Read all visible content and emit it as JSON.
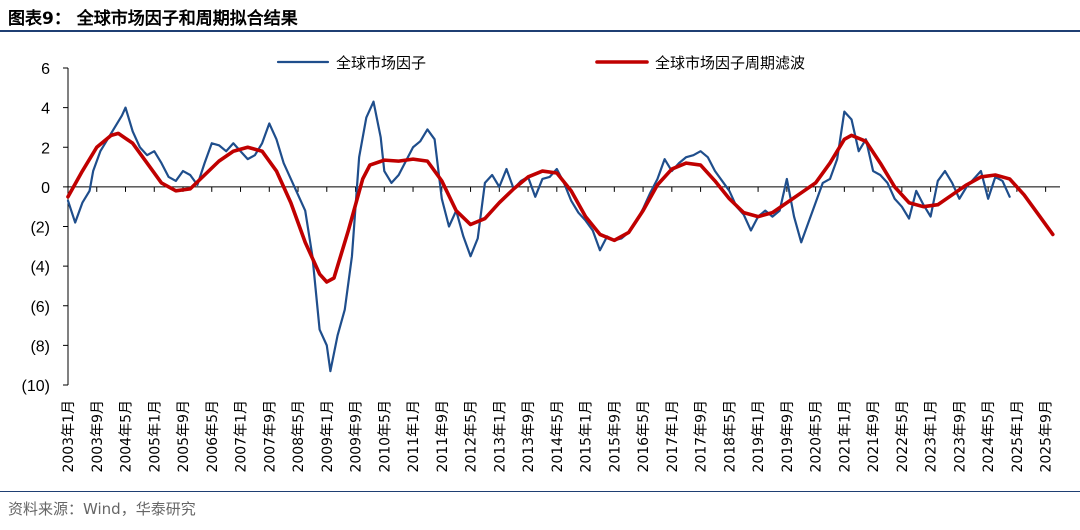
{
  "figure": {
    "title": "图表9：  全球市场因子和周期拟合结果",
    "source": "资料来源：Wind，华泰研究"
  },
  "colors": {
    "factor_line": "#1f4e8c",
    "filter_line": "#c00000",
    "axis": "#000000",
    "rule": "#1f3f73"
  },
  "chart_data": {
    "type": "line",
    "title": "",
    "xlabel": "",
    "ylabel": "",
    "ylim": [
      -10,
      6
    ],
    "y_ticks": [
      6,
      4,
      2,
      0,
      -2,
      -4,
      -6,
      -8,
      -10
    ],
    "y_tick_labels": [
      "6",
      "4",
      "2",
      "0",
      "(2)",
      "(4)",
      "(6)",
      "(8)",
      "(10)"
    ],
    "x_ticks": [
      "2003-01",
      "2003-09",
      "2004-05",
      "2005-01",
      "2005-09",
      "2006-05",
      "2007-01",
      "2007-09",
      "2008-05",
      "2009-01",
      "2009-09",
      "2010-05",
      "2011-01",
      "2011-09",
      "2012-05",
      "2013-01",
      "2013-09",
      "2014-05",
      "2015-01",
      "2015-09",
      "2016-05",
      "2017-01",
      "2017-09",
      "2018-05",
      "2019-01",
      "2019-09",
      "2020-05",
      "2021-01",
      "2021-09",
      "2022-05",
      "2023-01",
      "2023-09",
      "2024-05",
      "2025-01",
      "2025-09"
    ],
    "x_tick_labels": [
      "2003年1月",
      "2003年9月",
      "2004年5月",
      "2005年1月",
      "2005年9月",
      "2006年5月",
      "2007年1月",
      "2007年9月",
      "2008年5月",
      "2009年1月",
      "2009年9月",
      "2010年5月",
      "2011年1月",
      "2011年9月",
      "2012年5月",
      "2013年1月",
      "2013年9月",
      "2014年5月",
      "2015年1月",
      "2015年9月",
      "2016年5月",
      "2017年1月",
      "2017年9月",
      "2018年5月",
      "2019年1月",
      "2019年9月",
      "2020年5月",
      "2021年1月",
      "2021年9月",
      "2022年5月",
      "2023年1月",
      "2023年9月",
      "2024年5月",
      "2025年1月",
      "2025年9月"
    ],
    "legend_position": "top",
    "series": [
      {
        "name": "全球市场因子",
        "points": [
          [
            "2003-01",
            -0.7
          ],
          [
            "2003-03",
            -1.8
          ],
          [
            "2003-05",
            -0.8
          ],
          [
            "2003-07",
            -0.2
          ],
          [
            "2003-08",
            0.8
          ],
          [
            "2003-10",
            1.8
          ],
          [
            "2003-12",
            2.4
          ],
          [
            "2004-02",
            3.0
          ],
          [
            "2004-04",
            3.6
          ],
          [
            "2004-05",
            4.0
          ],
          [
            "2004-07",
            2.8
          ],
          [
            "2004-09",
            2.0
          ],
          [
            "2004-11",
            1.6
          ],
          [
            "2005-01",
            1.8
          ],
          [
            "2005-03",
            1.2
          ],
          [
            "2005-05",
            0.5
          ],
          [
            "2005-07",
            0.3
          ],
          [
            "2005-09",
            0.8
          ],
          [
            "2005-11",
            0.6
          ],
          [
            "2006-01",
            0.1
          ],
          [
            "2006-03",
            1.2
          ],
          [
            "2006-05",
            2.2
          ],
          [
            "2006-07",
            2.1
          ],
          [
            "2006-09",
            1.8
          ],
          [
            "2006-11",
            2.2
          ],
          [
            "2007-01",
            1.8
          ],
          [
            "2007-03",
            1.4
          ],
          [
            "2007-05",
            1.6
          ],
          [
            "2007-07",
            2.2
          ],
          [
            "2007-09",
            3.2
          ],
          [
            "2007-11",
            2.4
          ],
          [
            "2008-01",
            1.2
          ],
          [
            "2008-03",
            0.4
          ],
          [
            "2008-05",
            -0.4
          ],
          [
            "2008-07",
            -1.2
          ],
          [
            "2008-09",
            -3.5
          ],
          [
            "2008-11",
            -7.2
          ],
          [
            "2009-01",
            -8.0
          ],
          [
            "2009-02",
            -9.3
          ],
          [
            "2009-04",
            -7.5
          ],
          [
            "2009-06",
            -6.2
          ],
          [
            "2009-08",
            -3.5
          ],
          [
            "2009-10",
            1.5
          ],
          [
            "2009-12",
            3.5
          ],
          [
            "2010-02",
            4.3
          ],
          [
            "2010-04",
            2.5
          ],
          [
            "2010-05",
            0.8
          ],
          [
            "2010-07",
            0.2
          ],
          [
            "2010-09",
            0.6
          ],
          [
            "2010-11",
            1.3
          ],
          [
            "2011-01",
            2.0
          ],
          [
            "2011-03",
            2.3
          ],
          [
            "2011-05",
            2.9
          ],
          [
            "2011-07",
            2.4
          ],
          [
            "2011-09",
            -0.6
          ],
          [
            "2011-11",
            -2.0
          ],
          [
            "2012-01",
            -1.2
          ],
          [
            "2012-03",
            -2.5
          ],
          [
            "2012-05",
            -3.5
          ],
          [
            "2012-07",
            -2.6
          ],
          [
            "2012-09",
            0.2
          ],
          [
            "2012-11",
            0.6
          ],
          [
            "2013-01",
            0.0
          ],
          [
            "2013-03",
            0.9
          ],
          [
            "2013-05",
            -0.1
          ],
          [
            "2013-07",
            0.3
          ],
          [
            "2013-09",
            0.5
          ],
          [
            "2013-11",
            -0.5
          ],
          [
            "2014-01",
            0.4
          ],
          [
            "2014-03",
            0.5
          ],
          [
            "2014-05",
            0.9
          ],
          [
            "2014-07",
            0.2
          ],
          [
            "2014-09",
            -0.7
          ],
          [
            "2014-11",
            -1.3
          ],
          [
            "2015-01",
            -1.7
          ],
          [
            "2015-03",
            -2.2
          ],
          [
            "2015-05",
            -3.2
          ],
          [
            "2015-07",
            -2.5
          ],
          [
            "2015-09",
            -2.7
          ],
          [
            "2015-11",
            -2.6
          ],
          [
            "2016-01",
            -2.3
          ],
          [
            "2016-03",
            -1.8
          ],
          [
            "2016-05",
            -1.1
          ],
          [
            "2016-07",
            -0.3
          ],
          [
            "2016-09",
            0.4
          ],
          [
            "2016-11",
            1.4
          ],
          [
            "2017-01",
            0.8
          ],
          [
            "2017-03",
            1.2
          ],
          [
            "2017-05",
            1.5
          ],
          [
            "2017-07",
            1.6
          ],
          [
            "2017-09",
            1.8
          ],
          [
            "2017-11",
            1.5
          ],
          [
            "2018-01",
            0.8
          ],
          [
            "2018-03",
            0.3
          ],
          [
            "2018-05",
            -0.2
          ],
          [
            "2018-07",
            -1.0
          ],
          [
            "2018-09",
            -1.4
          ],
          [
            "2018-11",
            -2.2
          ],
          [
            "2019-01",
            -1.5
          ],
          [
            "2019-03",
            -1.2
          ],
          [
            "2019-05",
            -1.5
          ],
          [
            "2019-07",
            -1.2
          ],
          [
            "2019-09",
            0.4
          ],
          [
            "2019-11",
            -1.5
          ],
          [
            "2020-01",
            -2.8
          ],
          [
            "2020-03",
            -1.8
          ],
          [
            "2020-05",
            -0.8
          ],
          [
            "2020-07",
            0.2
          ],
          [
            "2020-09",
            0.4
          ],
          [
            "2020-11",
            1.4
          ],
          [
            "2021-01",
            3.8
          ],
          [
            "2021-03",
            3.4
          ],
          [
            "2021-05",
            1.8
          ],
          [
            "2021-07",
            2.4
          ],
          [
            "2021-09",
            0.8
          ],
          [
            "2021-11",
            0.6
          ],
          [
            "2022-01",
            0.2
          ],
          [
            "2022-03",
            -0.6
          ],
          [
            "2022-05",
            -1.0
          ],
          [
            "2022-07",
            -1.6
          ],
          [
            "2022-09",
            -0.2
          ],
          [
            "2022-11",
            -0.9
          ],
          [
            "2023-01",
            -1.5
          ],
          [
            "2023-03",
            0.3
          ],
          [
            "2023-05",
            0.8
          ],
          [
            "2023-07",
            0.2
          ],
          [
            "2023-09",
            -0.6
          ],
          [
            "2023-11",
            0.0
          ],
          [
            "2024-01",
            0.4
          ],
          [
            "2024-03",
            0.8
          ],
          [
            "2024-05",
            -0.6
          ],
          [
            "2024-07",
            0.5
          ],
          [
            "2024-09",
            0.3
          ],
          [
            "2024-11",
            -0.5
          ]
        ]
      },
      {
        "name": "全球市场因子周期滤波",
        "points": [
          [
            "2003-01",
            -0.5
          ],
          [
            "2003-05",
            0.8
          ],
          [
            "2003-09",
            2.0
          ],
          [
            "2004-01",
            2.6
          ],
          [
            "2004-03",
            2.7
          ],
          [
            "2004-07",
            2.2
          ],
          [
            "2004-11",
            1.2
          ],
          [
            "2005-03",
            0.2
          ],
          [
            "2005-07",
            -0.2
          ],
          [
            "2005-11",
            -0.1
          ],
          [
            "2006-03",
            0.6
          ],
          [
            "2006-07",
            1.3
          ],
          [
            "2006-11",
            1.8
          ],
          [
            "2007-03",
            2.0
          ],
          [
            "2007-07",
            1.8
          ],
          [
            "2007-11",
            0.8
          ],
          [
            "2008-03",
            -0.8
          ],
          [
            "2008-07",
            -2.8
          ],
          [
            "2008-11",
            -4.4
          ],
          [
            "2009-01",
            -4.8
          ],
          [
            "2009-03",
            -4.6
          ],
          [
            "2009-07",
            -2.2
          ],
          [
            "2009-11",
            0.4
          ],
          [
            "2010-01",
            1.1
          ],
          [
            "2010-05",
            1.35
          ],
          [
            "2010-09",
            1.3
          ],
          [
            "2011-01",
            1.4
          ],
          [
            "2011-05",
            1.3
          ],
          [
            "2011-09",
            0.3
          ],
          [
            "2012-01",
            -1.2
          ],
          [
            "2012-05",
            -1.9
          ],
          [
            "2012-09",
            -1.6
          ],
          [
            "2013-01",
            -0.8
          ],
          [
            "2013-05",
            -0.1
          ],
          [
            "2013-09",
            0.5
          ],
          [
            "2014-01",
            0.8
          ],
          [
            "2014-05",
            0.7
          ],
          [
            "2014-09",
            -0.2
          ],
          [
            "2015-01",
            -1.5
          ],
          [
            "2015-05",
            -2.4
          ],
          [
            "2015-09",
            -2.7
          ],
          [
            "2016-01",
            -2.3
          ],
          [
            "2016-05",
            -1.2
          ],
          [
            "2016-09",
            0.1
          ],
          [
            "2017-01",
            0.9
          ],
          [
            "2017-05",
            1.2
          ],
          [
            "2017-09",
            1.1
          ],
          [
            "2018-01",
            0.3
          ],
          [
            "2018-05",
            -0.6
          ],
          [
            "2018-09",
            -1.3
          ],
          [
            "2019-01",
            -1.5
          ],
          [
            "2019-05",
            -1.3
          ],
          [
            "2019-09",
            -0.8
          ],
          [
            "2020-01",
            -0.3
          ],
          [
            "2020-05",
            0.2
          ],
          [
            "2020-09",
            1.2
          ],
          [
            "2021-01",
            2.4
          ],
          [
            "2021-03",
            2.6
          ],
          [
            "2021-07",
            2.3
          ],
          [
            "2021-11",
            1.2
          ],
          [
            "2022-03",
            0.0
          ],
          [
            "2022-07",
            -0.8
          ],
          [
            "2022-11",
            -1.0
          ],
          [
            "2023-03",
            -0.9
          ],
          [
            "2023-07",
            -0.4
          ],
          [
            "2023-11",
            0.1
          ],
          [
            "2024-03",
            0.5
          ],
          [
            "2024-07",
            0.6
          ],
          [
            "2024-11",
            0.4
          ],
          [
            "2025-03",
            -0.4
          ],
          [
            "2025-07",
            -1.4
          ],
          [
            "2025-11",
            -2.4
          ]
        ]
      }
    ]
  }
}
